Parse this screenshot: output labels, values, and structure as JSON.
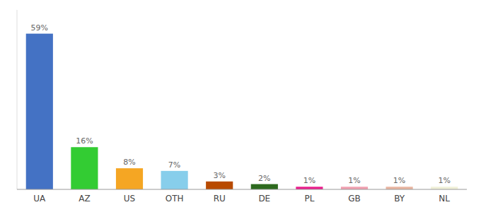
{
  "chart_data": {
    "type": "bar",
    "categories": [
      "UA",
      "AZ",
      "US",
      "OTH",
      "RU",
      "DE",
      "PL",
      "GB",
      "BY",
      "NL"
    ],
    "values": [
      59,
      16,
      8,
      7,
      3,
      2,
      1,
      1,
      1,
      1
    ],
    "value_labels": [
      "59%",
      "16%",
      "8%",
      "7%",
      "3%",
      "2%",
      "1%",
      "1%",
      "1%",
      "1%"
    ],
    "data_labels": true,
    "colors": [
      "#4472c4",
      "#33cc33",
      "#f5a623",
      "#87ceeb",
      "#b84a00",
      "#2d6a1e",
      "#e91e8c",
      "#f0a0b0",
      "#e8b4a0",
      "#f0f0d8"
    ],
    "ylim": [
      0,
      68
    ],
    "tick_labels": "x",
    "grid": false
  }
}
